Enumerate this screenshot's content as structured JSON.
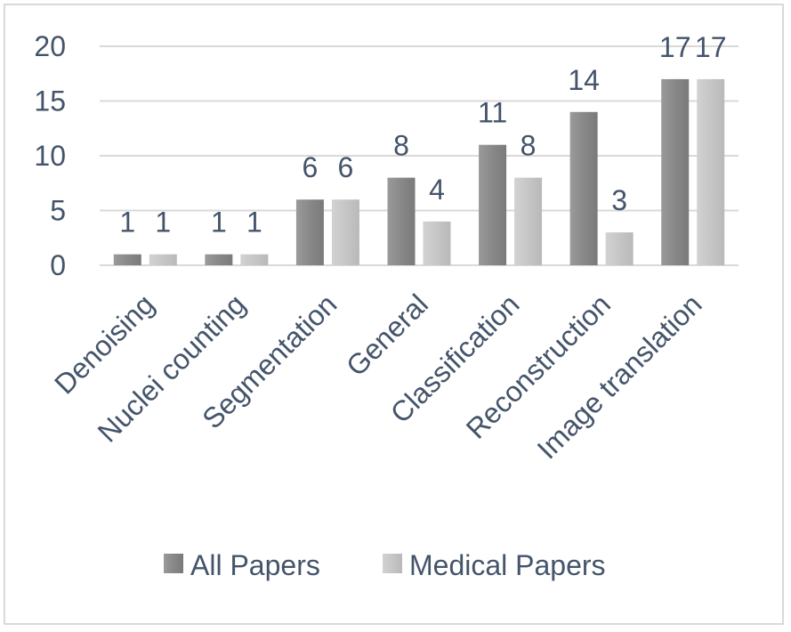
{
  "chart_data": {
    "type": "bar",
    "title": "",
    "xlabel": "",
    "ylabel": "",
    "ylim": [
      0,
      20
    ],
    "yticks": [
      0,
      5,
      10,
      15,
      20
    ],
    "grid": true,
    "legend_position": "bottom",
    "categories": [
      "Denoising",
      "Nuclei counting",
      "Segmentation",
      "General",
      "Classification",
      "Reconstruction",
      "Image translation"
    ],
    "series": [
      {
        "name": "All Papers",
        "values": [
          1,
          1,
          6,
          8,
          11,
          14,
          17
        ],
        "color": "#8c8c8c"
      },
      {
        "name": "Medical Papers",
        "values": [
          1,
          1,
          6,
          4,
          8,
          3,
          17
        ],
        "color": "#c8c8c8"
      }
    ]
  }
}
